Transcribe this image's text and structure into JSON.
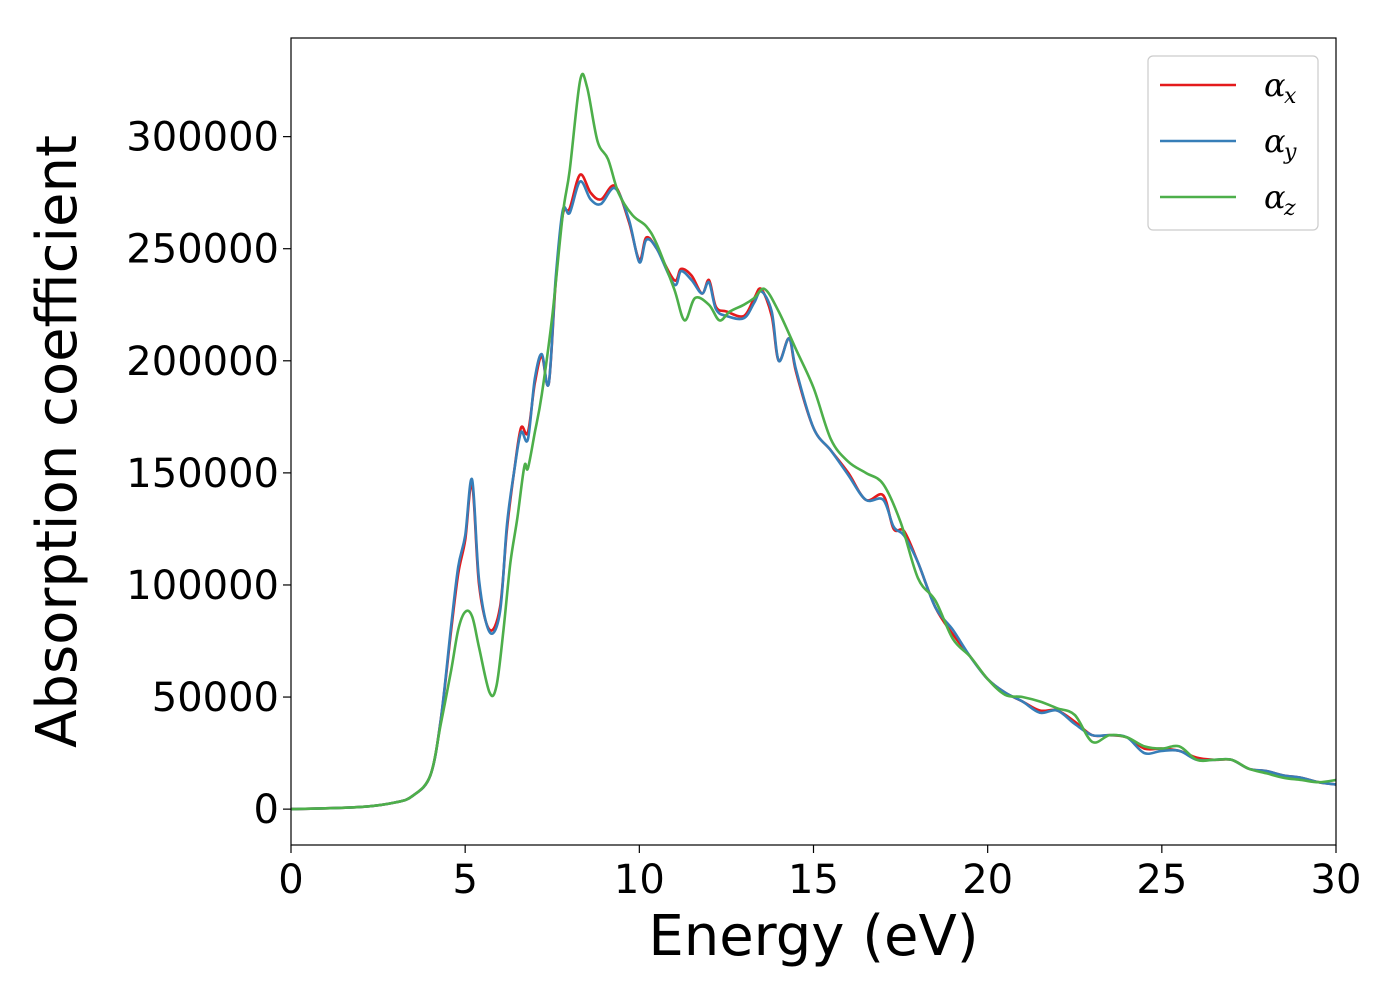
{
  "chart_data": {
    "type": "line",
    "xlabel": "Energy (eV)",
    "ylabel": "Absorption coefficient",
    "xlim": [
      0,
      30
    ],
    "ylim": [
      -16000,
      344000
    ],
    "xticks": [
      0,
      5,
      10,
      15,
      20,
      25,
      30
    ],
    "yticks": [
      0,
      50000,
      100000,
      150000,
      200000,
      250000,
      300000
    ],
    "grid": false,
    "legend_position": "top-right",
    "series": [
      {
        "name": "α_x",
        "symbol": "α",
        "subscript": "x",
        "color": "#e41a1c",
        "x": [
          0,
          2,
          3,
          3.5,
          4,
          4.3,
          4.6,
          4.8,
          5.0,
          5.2,
          5.4,
          5.7,
          6.0,
          6.2,
          6.4,
          6.6,
          6.8,
          7.0,
          7.2,
          7.4,
          7.6,
          7.8,
          8.0,
          8.3,
          8.6,
          8.9,
          9.3,
          9.7,
          10.0,
          10.2,
          10.5,
          11.0,
          11.2,
          11.5,
          11.8,
          12.0,
          12.2,
          12.5,
          13.0,
          13.3,
          13.5,
          13.8,
          14.0,
          14.3,
          14.5,
          15.0,
          15.5,
          16.0,
          16.5,
          17.0,
          17.3,
          17.6,
          18.0,
          18.5,
          19.0,
          19.5,
          20.0,
          20.5,
          21.0,
          21.5,
          22.0,
          22.5,
          23.0,
          23.5,
          24.0,
          24.5,
          25.0,
          25.5,
          26.0,
          26.5,
          27.0,
          27.5,
          28.0,
          28.5,
          29.0,
          29.5,
          30.0
        ],
        "y": [
          0,
          1000,
          3000,
          6000,
          15000,
          40000,
          80000,
          105000,
          120000,
          145000,
          100000,
          80000,
          90000,
          125000,
          150000,
          170000,
          168000,
          190000,
          202000,
          190000,
          235000,
          265000,
          268000,
          283000,
          275000,
          272000,
          278000,
          262000,
          245000,
          255000,
          250000,
          236000,
          241000,
          238000,
          230000,
          236000,
          224000,
          222000,
          220000,
          228000,
          232000,
          220000,
          200000,
          210000,
          195000,
          170000,
          160000,
          150000,
          138000,
          140000,
          125000,
          124000,
          110000,
          90000,
          78000,
          68000,
          58000,
          52000,
          48000,
          44000,
          44000,
          39000,
          33000,
          33000,
          32000,
          27000,
          27000,
          26000,
          23000,
          22000,
          22000,
          18000,
          17000,
          15000,
          14000,
          12000,
          11000
        ]
      },
      {
        "name": "α_y",
        "symbol": "α",
        "subscript": "y",
        "color": "#377eb8",
        "x": [
          0,
          2,
          3,
          3.5,
          4,
          4.3,
          4.6,
          4.8,
          5.0,
          5.2,
          5.4,
          5.7,
          6.0,
          6.2,
          6.4,
          6.6,
          6.8,
          7.0,
          7.2,
          7.4,
          7.6,
          7.8,
          8.0,
          8.3,
          8.6,
          8.9,
          9.3,
          9.7,
          10.0,
          10.2,
          10.5,
          11.0,
          11.2,
          11.5,
          11.8,
          12.0,
          12.2,
          12.5,
          13.0,
          13.3,
          13.5,
          13.8,
          14.0,
          14.3,
          14.5,
          15.0,
          15.5,
          16.0,
          16.5,
          17.0,
          17.3,
          17.6,
          18.0,
          18.5,
          19.0,
          19.5,
          20.0,
          20.5,
          21.0,
          21.5,
          22.0,
          22.5,
          23.0,
          23.5,
          24.0,
          24.5,
          25.0,
          25.5,
          26.0,
          26.5,
          27.0,
          27.5,
          28.0,
          28.5,
          29.0,
          29.5,
          30.0
        ],
        "y": [
          0,
          1000,
          3000,
          6000,
          15000,
          40000,
          82000,
          108000,
          122000,
          147000,
          102000,
          79000,
          88000,
          127000,
          150000,
          168000,
          165000,
          192000,
          203000,
          190000,
          237000,
          267000,
          266000,
          280000,
          272000,
          270000,
          277000,
          263000,
          244000,
          254000,
          250000,
          234000,
          240000,
          236000,
          230000,
          235000,
          223000,
          220000,
          219000,
          226000,
          231000,
          222000,
          200000,
          210000,
          196000,
          170000,
          160000,
          149000,
          138000,
          138000,
          126000,
          122000,
          110000,
          90000,
          80000,
          68000,
          58000,
          52000,
          48000,
          43000,
          44000,
          38000,
          33000,
          33000,
          32000,
          25000,
          26000,
          26000,
          22000,
          22000,
          22000,
          18000,
          17000,
          15000,
          14000,
          12000,
          11000
        ]
      },
      {
        "name": "α_z",
        "symbol": "α",
        "subscript": "z",
        "color": "#4daf4a",
        "x": [
          0,
          2,
          3,
          3.5,
          4,
          4.3,
          4.6,
          4.8,
          5.0,
          5.2,
          5.4,
          5.7,
          5.9,
          6.1,
          6.3,
          6.5,
          6.7,
          6.8,
          7.0,
          7.2,
          7.5,
          7.8,
          8.0,
          8.3,
          8.5,
          8.8,
          9.1,
          9.4,
          9.8,
          10.2,
          10.5,
          11.0,
          11.3,
          11.6,
          12.0,
          12.3,
          12.6,
          13.0,
          13.3,
          13.6,
          14.0,
          14.5,
          15.0,
          15.5,
          16.0,
          16.5,
          17.0,
          17.5,
          18.0,
          18.5,
          19.0,
          19.5,
          20.0,
          20.5,
          21.0,
          21.5,
          22.0,
          22.5,
          23.0,
          23.5,
          24.0,
          24.5,
          25.0,
          25.5,
          26.0,
          26.5,
          27.0,
          27.5,
          28.0,
          28.5,
          29.0,
          29.5,
          30.0
        ],
        "y": [
          0,
          1000,
          3000,
          6000,
          15000,
          38000,
          62000,
          80000,
          88000,
          86000,
          72000,
          52000,
          55000,
          80000,
          110000,
          130000,
          153000,
          152000,
          168000,
          185000,
          220000,
          265000,
          285000,
          325000,
          322000,
          298000,
          290000,
          275000,
          265000,
          260000,
          252000,
          232000,
          218000,
          228000,
          225000,
          218000,
          222000,
          225000,
          228000,
          232000,
          222000,
          205000,
          188000,
          165000,
          155000,
          150000,
          145000,
          128000,
          103000,
          93000,
          76000,
          68000,
          58000,
          51000,
          50000,
          48000,
          45000,
          42000,
          30000,
          33000,
          32000,
          28000,
          27000,
          28000,
          22000,
          22000,
          22000,
          18000,
          16000,
          14000,
          13000,
          12000,
          13000
        ]
      }
    ]
  }
}
